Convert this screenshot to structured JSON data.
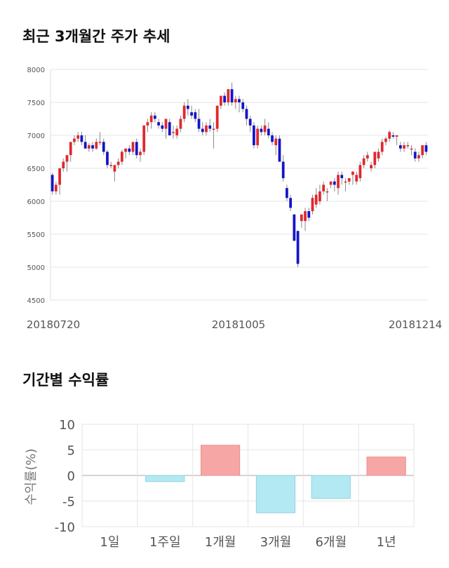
{
  "sections": {
    "price_title": "최근 3개월간 주가 추세",
    "returns_title": "기간별 수익률"
  },
  "colors": {
    "up": "#e0282e",
    "down": "#1414c8",
    "pos_bar": "#f7a6a6",
    "neg_bar": "#b3e9f2",
    "grid": "#e6e6e6"
  },
  "chart_data": [
    {
      "type": "candlestick",
      "title": "최근 3개월간 주가 추세",
      "ylim": [
        4500,
        8000
      ],
      "y_ticks": [
        4500,
        5000,
        5500,
        6000,
        6500,
        7000,
        7500,
        8000
      ],
      "x_tick_labels": [
        "20180720",
        "20181005",
        "20181214"
      ],
      "grid": true,
      "series_ohlc": [
        [
          6400,
          6430,
          6100,
          6150
        ],
        [
          6150,
          6300,
          6100,
          6250
        ],
        [
          6250,
          6500,
          6100,
          6500
        ],
        [
          6500,
          6650,
          6450,
          6600
        ],
        [
          6600,
          6700,
          6450,
          6700
        ],
        [
          6700,
          6900,
          6600,
          6900
        ],
        [
          6900,
          7000,
          6850,
          6950
        ],
        [
          6950,
          7050,
          6900,
          7000
        ],
        [
          7000,
          7050,
          6850,
          6900
        ],
        [
          6900,
          7000,
          6800,
          6800
        ],
        [
          6800,
          6880,
          6750,
          6850
        ],
        [
          6850,
          6900,
          6750,
          6800
        ],
        [
          6800,
          6950,
          6780,
          6900
        ],
        [
          6900,
          7050,
          6850,
          6900
        ],
        [
          6900,
          6950,
          6700,
          6750
        ],
        [
          6750,
          6780,
          6500,
          6550
        ],
        [
          6550,
          6600,
          6500,
          6550
        ],
        [
          6450,
          6550,
          6300,
          6550
        ],
        [
          6550,
          6650,
          6500,
          6600
        ],
        [
          6600,
          6780,
          6550,
          6750
        ],
        [
          6750,
          6800,
          6650,
          6800
        ],
        [
          6800,
          6850,
          6700,
          6750
        ],
        [
          6750,
          6900,
          6700,
          6900
        ],
        [
          6900,
          6950,
          6650,
          6700
        ],
        [
          6700,
          6800,
          6600,
          6750
        ],
        [
          6750,
          7150,
          6700,
          7150
        ],
        [
          7150,
          7250,
          7050,
          7200
        ],
        [
          7200,
          7350,
          7100,
          7300
        ],
        [
          7300,
          7350,
          7200,
          7250
        ],
        [
          7200,
          7250,
          7100,
          7150
        ],
        [
          7150,
          7200,
          7050,
          7100
        ],
        [
          7100,
          7250,
          6950,
          7250
        ],
        [
          7200,
          7250,
          7000,
          7000
        ],
        [
          7050,
          7150,
          6950,
          7050
        ],
        [
          7000,
          7150,
          6950,
          7100
        ],
        [
          7100,
          7300,
          7050,
          7250
        ],
        [
          7250,
          7500,
          7200,
          7450
        ],
        [
          7450,
          7550,
          7300,
          7400
        ],
        [
          7350,
          7450,
          7250,
          7300
        ],
        [
          7350,
          7400,
          7200,
          7250
        ],
        [
          7250,
          7400,
          7050,
          7100
        ],
        [
          7100,
          7200,
          7000,
          7050
        ],
        [
          7050,
          7200,
          7000,
          7150
        ],
        [
          7150,
          7250,
          7050,
          7100
        ],
        [
          7100,
          7200,
          6800,
          7100
        ],
        [
          7100,
          7450,
          7050,
          7450
        ],
        [
          7450,
          7600,
          7400,
          7600
        ],
        [
          7600,
          7650,
          7450,
          7500
        ],
        [
          7500,
          7700,
          7450,
          7700
        ],
        [
          7700,
          7800,
          7450,
          7500
        ],
        [
          7500,
          7600,
          7400,
          7550
        ],
        [
          7550,
          7600,
          7350,
          7500
        ],
        [
          7500,
          7550,
          7350,
          7400
        ],
        [
          7400,
          7450,
          7150,
          7250
        ],
        [
          7250,
          7300,
          7050,
          7150
        ],
        [
          7150,
          7200,
          6800,
          6850
        ],
        [
          6850,
          7150,
          6800,
          7100
        ],
        [
          7100,
          7150,
          7000,
          7050
        ],
        [
          7050,
          7250,
          7000,
          7150
        ],
        [
          7100,
          7200,
          6950,
          7000
        ],
        [
          7000,
          7050,
          6850,
          6900
        ],
        [
          6850,
          7000,
          6700,
          6950
        ],
        [
          6950,
          7000,
          6600,
          6600
        ],
        [
          6600,
          6700,
          6300,
          6350
        ],
        [
          6200,
          6250,
          6000,
          6050
        ],
        [
          6050,
          6100,
          5850,
          5900
        ],
        [
          5800,
          5800,
          5400,
          5400
        ],
        [
          5550,
          5550,
          5000,
          5050
        ],
        [
          5700,
          5800,
          5600,
          5800
        ],
        [
          5700,
          5900,
          5550,
          5850
        ],
        [
          5850,
          5900,
          5700,
          5750
        ],
        [
          5850,
          6100,
          5800,
          6050
        ],
        [
          5950,
          6200,
          5900,
          6100
        ],
        [
          6000,
          6250,
          5950,
          6150
        ],
        [
          6150,
          6300,
          6100,
          6250
        ],
        [
          6150,
          6200,
          6000,
          6150
        ],
        [
          6250,
          6300,
          6200,
          6300
        ],
        [
          6300,
          6350,
          6150,
          6250
        ],
        [
          6200,
          6450,
          6100,
          6400
        ],
        [
          6400,
          6450,
          6250,
          6350
        ],
        [
          6300,
          6350,
          6150,
          6300
        ],
        [
          6300,
          6350,
          6250,
          6350
        ],
        [
          6400,
          6450,
          6250,
          6450
        ],
        [
          6300,
          6450,
          6250,
          6400
        ],
        [
          6350,
          6600,
          6300,
          6550
        ],
        [
          6550,
          6700,
          6500,
          6650
        ],
        [
          6650,
          6750,
          6600,
          6700
        ],
        [
          6500,
          6600,
          6450,
          6550
        ],
        [
          6550,
          6750,
          6500,
          6750
        ],
        [
          6650,
          6800,
          6600,
          6750
        ],
        [
          6750,
          6950,
          6700,
          6900
        ],
        [
          6900,
          6980,
          6850,
          6950
        ],
        [
          6950,
          7080,
          6900,
          7050
        ],
        [
          7000,
          7050,
          6950,
          6980
        ],
        [
          6980,
          7000,
          6850,
          7000
        ],
        [
          6850,
          6900,
          6750,
          6800
        ],
        [
          6800,
          6900,
          6750,
          6850
        ],
        [
          6850,
          6900,
          6800,
          6850
        ],
        [
          6800,
          6850,
          6700,
          6800
        ],
        [
          6750,
          6800,
          6600,
          6650
        ],
        [
          6650,
          6750,
          6600,
          6700
        ],
        [
          6700,
          6850,
          6650,
          6850
        ],
        [
          6850,
          6900,
          6700,
          6750
        ]
      ]
    },
    {
      "type": "bar",
      "categories": [
        "1일",
        "1주일",
        "1개월",
        "3개월",
        "6개월",
        "1년"
      ],
      "values": [
        0.0,
        -1.2,
        5.9,
        -7.3,
        -4.5,
        3.6
      ],
      "ylabel": "수익률(%)",
      "ylim": [
        -10,
        10
      ],
      "y_ticks": [
        10,
        5,
        0,
        -5,
        -10
      ],
      "grid": true
    }
  ]
}
